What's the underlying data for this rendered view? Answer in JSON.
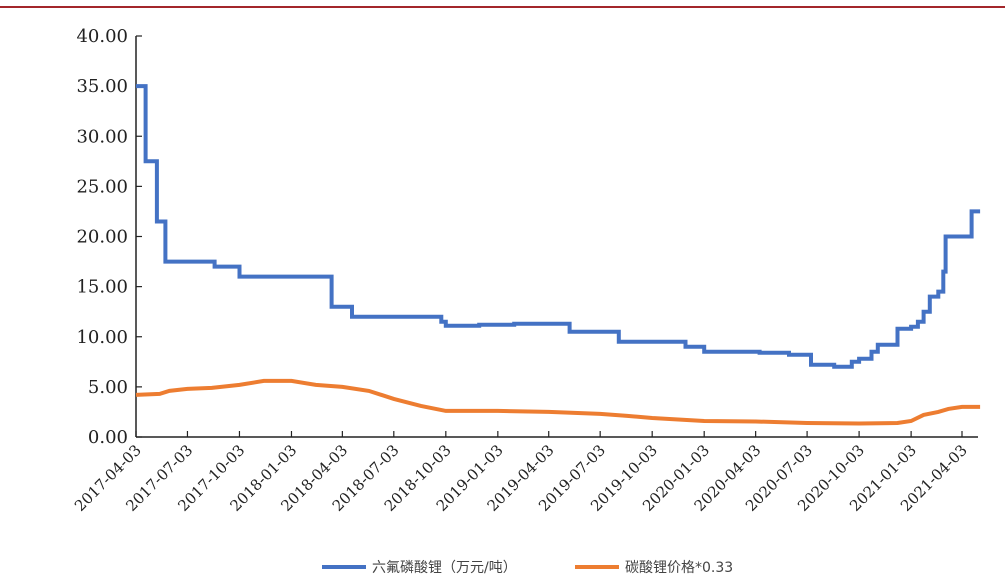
{
  "chart_data": {
    "type": "line",
    "title": "",
    "xlabel": "",
    "ylabel": "",
    "ylim": [
      0,
      40
    ],
    "yticks": [
      "0.00",
      "5.00",
      "10.00",
      "15.00",
      "20.00",
      "25.00",
      "30.00",
      "35.00",
      "40.00"
    ],
    "xlim": [
      "2017-04-03",
      "2021-05-15"
    ],
    "xticks": [
      "2017-04-03",
      "2017-07-03",
      "2017-10-03",
      "2018-01-03",
      "2018-04-03",
      "2018-07-03",
      "2018-10-03",
      "2019-01-03",
      "2019-04-03",
      "2019-07-03",
      "2019-10-03",
      "2020-01-03",
      "2020-04-03",
      "2020-07-03",
      "2020-10-03",
      "2021-01-03",
      "2021-04-03"
    ],
    "grid": false,
    "legend_position": "bottom",
    "colors": {
      "series_1": "#4472c4",
      "series_2": "#ed7d31",
      "top_rule": "#a3262b"
    },
    "series": [
      {
        "name": "六氟磷酸锂（万元/吨）",
        "step": true,
        "points": [
          [
            "2017-04-03",
            35.0
          ],
          [
            "2017-04-20",
            27.5
          ],
          [
            "2017-05-10",
            21.5
          ],
          [
            "2017-05-25",
            17.5
          ],
          [
            "2017-08-20",
            17.0
          ],
          [
            "2017-10-03",
            16.0
          ],
          [
            "2018-03-15",
            13.0
          ],
          [
            "2018-04-20",
            12.0
          ],
          [
            "2018-09-25",
            11.5
          ],
          [
            "2018-10-03",
            11.1
          ],
          [
            "2018-12-01",
            11.2
          ],
          [
            "2019-02-01",
            11.3
          ],
          [
            "2019-05-10",
            10.5
          ],
          [
            "2019-08-05",
            9.5
          ],
          [
            "2019-12-01",
            9.0
          ],
          [
            "2020-01-03",
            8.5
          ],
          [
            "2020-04-10",
            8.4
          ],
          [
            "2020-06-01",
            8.2
          ],
          [
            "2020-07-10",
            7.2
          ],
          [
            "2020-08-20",
            7.0
          ],
          [
            "2020-09-20",
            7.5
          ],
          [
            "2020-10-03",
            7.8
          ],
          [
            "2020-10-25",
            8.5
          ],
          [
            "2020-11-05",
            9.2
          ],
          [
            "2020-12-10",
            10.8
          ],
          [
            "2021-01-03",
            11.0
          ],
          [
            "2021-01-15",
            11.5
          ],
          [
            "2021-01-25",
            12.5
          ],
          [
            "2021-02-05",
            14.0
          ],
          [
            "2021-02-20",
            14.5
          ],
          [
            "2021-03-01",
            16.5
          ],
          [
            "2021-03-05",
            20.0
          ],
          [
            "2021-04-20",
            22.5
          ],
          [
            "2021-05-05",
            22.5
          ]
        ]
      },
      {
        "name": "碳酸锂价格*0.33",
        "step": false,
        "points": [
          [
            "2017-04-03",
            4.2
          ],
          [
            "2017-05-15",
            4.3
          ],
          [
            "2017-06-01",
            4.6
          ],
          [
            "2017-07-03",
            4.8
          ],
          [
            "2017-08-15",
            4.9
          ],
          [
            "2017-10-03",
            5.2
          ],
          [
            "2017-11-15",
            5.6
          ],
          [
            "2018-01-03",
            5.6
          ],
          [
            "2018-02-15",
            5.2
          ],
          [
            "2018-04-03",
            5.0
          ],
          [
            "2018-05-20",
            4.6
          ],
          [
            "2018-07-03",
            3.8
          ],
          [
            "2018-08-20",
            3.1
          ],
          [
            "2018-10-03",
            2.6
          ],
          [
            "2019-01-03",
            2.6
          ],
          [
            "2019-04-03",
            2.5
          ],
          [
            "2019-07-03",
            2.3
          ],
          [
            "2019-08-20",
            2.1
          ],
          [
            "2019-10-03",
            1.9
          ],
          [
            "2020-01-03",
            1.6
          ],
          [
            "2020-04-03",
            1.55
          ],
          [
            "2020-07-03",
            1.4
          ],
          [
            "2020-10-03",
            1.35
          ],
          [
            "2020-12-10",
            1.4
          ],
          [
            "2021-01-03",
            1.6
          ],
          [
            "2021-01-25",
            2.2
          ],
          [
            "2021-02-20",
            2.5
          ],
          [
            "2021-03-10",
            2.8
          ],
          [
            "2021-04-03",
            3.0
          ],
          [
            "2021-05-05",
            3.0
          ]
        ]
      }
    ]
  }
}
